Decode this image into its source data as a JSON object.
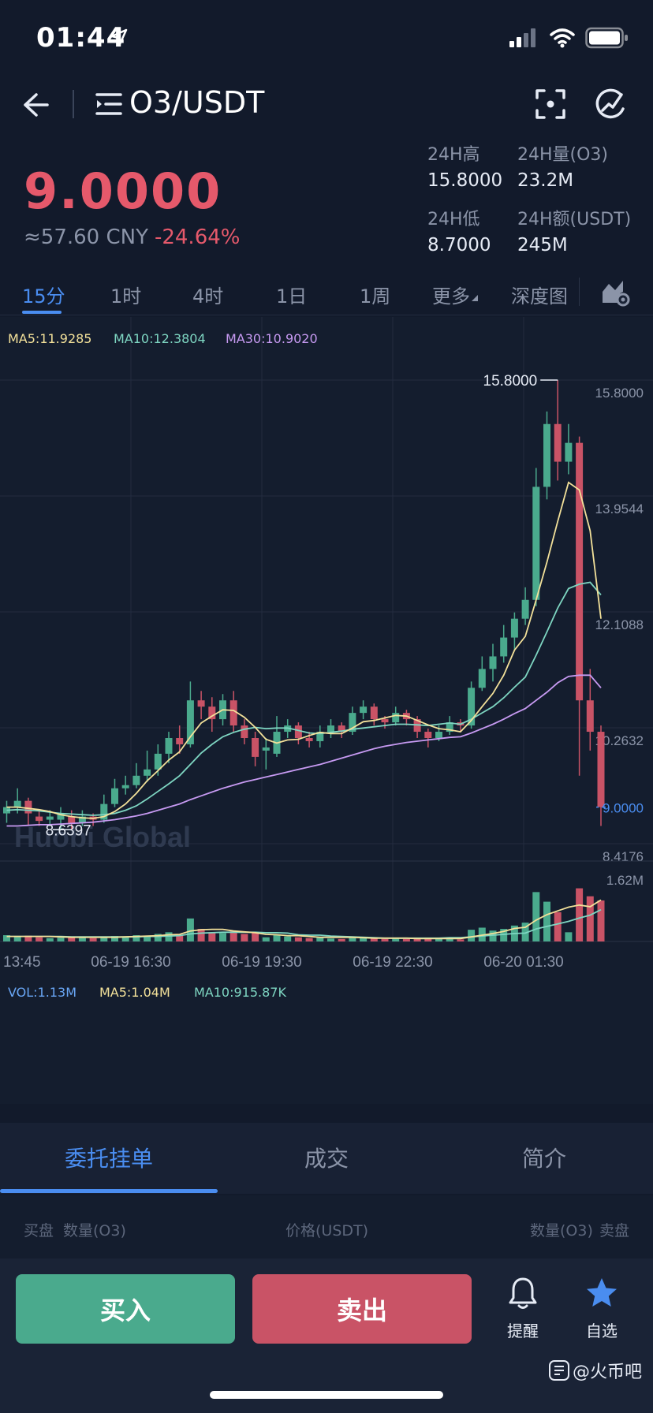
{
  "status": {
    "time": "01:44"
  },
  "nav": {
    "title": "O3/USDT"
  },
  "price": {
    "last": "9.0000",
    "cny": "≈57.60 CNY",
    "change": "-24.64%"
  },
  "stats": {
    "high_label": "24H高",
    "high": "15.8000",
    "vol_label": "24H量(O3)",
    "vol": "23.2M",
    "low_label": "24H低",
    "low": "8.7000",
    "amount_label": "24H额(USDT)",
    "amount": "245M"
  },
  "tabs": [
    "15分",
    "1时",
    "4时",
    "1日",
    "1周",
    "更多",
    "深度图"
  ],
  "ma": {
    "ma5": "MA5:11.9285",
    "ma10": "MA10:12.3804",
    "ma30": "MA30:10.9020"
  },
  "vol_legend": {
    "vol": "VOL:1.13M",
    "ma5": "MA5:1.04M",
    "ma10": "MA10:915.87K"
  },
  "chart_data": {
    "type": "candlestick",
    "price_axis": [
      "15.8000",
      "13.9544",
      "12.1088",
      "10.2632",
      "8.4176"
    ],
    "ylim": [
      8.4176,
      15.8
    ],
    "volume_axis_max": "1.62M",
    "x_ticks": [
      "13:45",
      "06-19 16:30",
      "06-19 19:30",
      "06-19 22:30",
      "06-20 01:30"
    ],
    "high_marker": "15.8000",
    "low_marker": "8.6397",
    "last_price_marker": "9.0000",
    "watermark": "Huobi Global",
    "candles": [
      {
        "o": 8.9,
        "c": 9.0,
        "h": 9.1,
        "l": 8.75,
        "v": 0.15
      },
      {
        "o": 9.0,
        "c": 9.1,
        "h": 9.3,
        "l": 8.9,
        "v": 0.12
      },
      {
        "o": 9.1,
        "c": 8.9,
        "h": 9.15,
        "l": 8.7,
        "v": 0.14
      },
      {
        "o": 8.85,
        "c": 8.78,
        "h": 8.95,
        "l": 8.7,
        "v": 0.1
      },
      {
        "o": 8.8,
        "c": 8.85,
        "h": 8.95,
        "l": 8.7,
        "v": 0.08
      },
      {
        "o": 8.8,
        "c": 8.9,
        "h": 9.0,
        "l": 8.65,
        "v": 0.09
      },
      {
        "o": 8.85,
        "c": 8.75,
        "h": 8.95,
        "l": 8.64,
        "v": 0.12
      },
      {
        "o": 8.75,
        "c": 8.85,
        "h": 8.95,
        "l": 8.7,
        "v": 0.1
      },
      {
        "o": 8.85,
        "c": 8.8,
        "h": 8.9,
        "l": 8.7,
        "v": 0.08
      },
      {
        "o": 8.8,
        "c": 9.05,
        "h": 9.2,
        "l": 8.75,
        "v": 0.11
      },
      {
        "o": 9.05,
        "c": 9.3,
        "h": 9.45,
        "l": 9.0,
        "v": 0.13
      },
      {
        "o": 9.3,
        "c": 9.35,
        "h": 9.5,
        "l": 9.2,
        "v": 0.12
      },
      {
        "o": 9.35,
        "c": 9.5,
        "h": 9.7,
        "l": 9.3,
        "v": 0.15
      },
      {
        "o": 9.5,
        "c": 9.6,
        "h": 9.9,
        "l": 9.4,
        "v": 0.14
      },
      {
        "o": 9.6,
        "c": 9.85,
        "h": 10.0,
        "l": 9.5,
        "v": 0.18
      },
      {
        "o": 9.85,
        "c": 10.1,
        "h": 10.2,
        "l": 9.7,
        "v": 0.22
      },
      {
        "o": 10.1,
        "c": 10.0,
        "h": 10.3,
        "l": 9.85,
        "v": 0.16
      },
      {
        "o": 10.0,
        "c": 10.7,
        "h": 11.0,
        "l": 9.95,
        "v": 0.55
      },
      {
        "o": 10.7,
        "c": 10.6,
        "h": 10.85,
        "l": 10.4,
        "v": 0.3
      },
      {
        "o": 10.6,
        "c": 10.4,
        "h": 10.75,
        "l": 10.2,
        "v": 0.22
      },
      {
        "o": 10.4,
        "c": 10.7,
        "h": 10.8,
        "l": 10.3,
        "v": 0.2
      },
      {
        "o": 10.7,
        "c": 10.3,
        "h": 10.85,
        "l": 10.2,
        "v": 0.25
      },
      {
        "o": 10.3,
        "c": 10.1,
        "h": 10.4,
        "l": 10.0,
        "v": 0.18
      },
      {
        "o": 10.1,
        "c": 9.8,
        "h": 10.2,
        "l": 9.65,
        "v": 0.2
      },
      {
        "o": 9.9,
        "c": 9.95,
        "h": 10.1,
        "l": 9.6,
        "v": 0.1
      },
      {
        "o": 9.85,
        "c": 10.2,
        "h": 10.45,
        "l": 9.8,
        "v": 0.16
      },
      {
        "o": 10.2,
        "c": 10.3,
        "h": 10.4,
        "l": 10.1,
        "v": 0.12
      },
      {
        "o": 10.3,
        "c": 10.1,
        "h": 10.35,
        "l": 10.0,
        "v": 0.1
      },
      {
        "o": 10.1,
        "c": 10.05,
        "h": 10.2,
        "l": 9.95,
        "v": 0.08
      },
      {
        "o": 10.05,
        "c": 10.2,
        "h": 10.3,
        "l": 9.95,
        "v": 0.09
      },
      {
        "o": 10.2,
        "c": 10.3,
        "h": 10.4,
        "l": 10.1,
        "v": 0.07
      },
      {
        "o": 10.3,
        "c": 10.2,
        "h": 10.35,
        "l": 10.1,
        "v": 0.06
      },
      {
        "o": 10.2,
        "c": 10.5,
        "h": 10.6,
        "l": 10.15,
        "v": 0.12
      },
      {
        "o": 10.5,
        "c": 10.6,
        "h": 10.7,
        "l": 10.4,
        "v": 0.1
      },
      {
        "o": 10.6,
        "c": 10.4,
        "h": 10.65,
        "l": 10.3,
        "v": 0.08
      },
      {
        "o": 10.4,
        "c": 10.35,
        "h": 10.45,
        "l": 10.25,
        "v": 0.06
      },
      {
        "o": 10.35,
        "c": 10.5,
        "h": 10.6,
        "l": 10.3,
        "v": 0.07
      },
      {
        "o": 10.5,
        "c": 10.4,
        "h": 10.55,
        "l": 10.3,
        "v": 0.06
      },
      {
        "o": 10.4,
        "c": 10.2,
        "h": 10.45,
        "l": 10.1,
        "v": 0.07
      },
      {
        "o": 10.2,
        "c": 10.1,
        "h": 10.25,
        "l": 9.95,
        "v": 0.08
      },
      {
        "o": 10.1,
        "c": 10.2,
        "h": 10.3,
        "l": 10.05,
        "v": 0.06
      },
      {
        "o": 10.2,
        "c": 10.35,
        "h": 10.45,
        "l": 10.15,
        "v": 0.07
      },
      {
        "o": 10.35,
        "c": 10.3,
        "h": 10.4,
        "l": 10.2,
        "v": 0.05
      },
      {
        "o": 10.3,
        "c": 10.9,
        "h": 11.0,
        "l": 10.25,
        "v": 0.28
      },
      {
        "o": 10.9,
        "c": 11.2,
        "h": 11.4,
        "l": 10.85,
        "v": 0.33
      },
      {
        "o": 11.2,
        "c": 11.4,
        "h": 11.6,
        "l": 11.0,
        "v": 0.26
      },
      {
        "o": 11.4,
        "c": 11.7,
        "h": 11.9,
        "l": 11.3,
        "v": 0.3
      },
      {
        "o": 11.7,
        "c": 12.0,
        "h": 12.1,
        "l": 11.5,
        "v": 0.38
      },
      {
        "o": 12.0,
        "c": 12.3,
        "h": 12.5,
        "l": 11.9,
        "v": 0.45
      },
      {
        "o": 12.3,
        "c": 14.1,
        "h": 14.4,
        "l": 12.2,
        "v": 1.18
      },
      {
        "o": 14.1,
        "c": 15.1,
        "h": 15.3,
        "l": 13.9,
        "v": 0.95
      },
      {
        "o": 15.1,
        "c": 14.5,
        "h": 15.8,
        "l": 14.2,
        "v": 0.7
      },
      {
        "o": 14.5,
        "c": 14.8,
        "h": 15.1,
        "l": 14.3,
        "v": 0.22
      },
      {
        "o": 14.8,
        "c": 10.7,
        "h": 14.9,
        "l": 9.5,
        "v": 1.27
      },
      {
        "o": 10.7,
        "c": 10.2,
        "h": 11.2,
        "l": 9.9,
        "v": 1.08
      },
      {
        "o": 10.2,
        "c": 9.0,
        "h": 10.3,
        "l": 8.7,
        "v": 0.98
      }
    ],
    "ma5": [
      9.0,
      9.0,
      8.98,
      8.96,
      8.93,
      8.88,
      8.85,
      8.83,
      8.82,
      8.85,
      8.93,
      9.05,
      9.22,
      9.42,
      9.58,
      9.75,
      9.88,
      10.12,
      10.34,
      10.45,
      10.55,
      10.54,
      10.43,
      10.27,
      10.08,
      10.02,
      10.07,
      10.08,
      10.14,
      10.19,
      10.17,
      10.17,
      10.26,
      10.36,
      10.38,
      10.42,
      10.46,
      10.45,
      10.38,
      10.31,
      10.25,
      10.23,
      10.2,
      10.38,
      10.6,
      10.81,
      11.1,
      11.5,
      11.72,
      12.3,
      12.9,
      13.55,
      14.17,
      14.05,
      13.4,
      12.0
    ],
    "ma10": [
      8.95,
      8.96,
      8.95,
      8.94,
      8.92,
      8.9,
      8.89,
      8.88,
      8.87,
      8.88,
      8.9,
      8.95,
      9.02,
      9.13,
      9.25,
      9.37,
      9.5,
      9.68,
      9.86,
      10.0,
      10.12,
      10.19,
      10.24,
      10.27,
      10.25,
      10.26,
      10.26,
      10.22,
      10.18,
      10.17,
      10.19,
      10.21,
      10.24,
      10.26,
      10.28,
      10.3,
      10.32,
      10.32,
      10.31,
      10.3,
      10.32,
      10.34,
      10.32,
      10.4,
      10.5,
      10.6,
      10.74,
      10.91,
      11.07,
      11.42,
      11.79,
      12.17,
      12.48,
      12.55,
      12.58,
      12.38
    ],
    "ma30": [
      8.7,
      8.7,
      8.71,
      8.72,
      8.72,
      8.73,
      8.74,
      8.75,
      8.76,
      8.78,
      8.8,
      8.83,
      8.86,
      8.9,
      8.95,
      9.0,
      9.05,
      9.12,
      9.18,
      9.24,
      9.3,
      9.35,
      9.4,
      9.44,
      9.48,
      9.52,
      9.56,
      9.6,
      9.64,
      9.68,
      9.73,
      9.78,
      9.83,
      9.88,
      9.93,
      9.97,
      10.0,
      10.03,
      10.05,
      10.07,
      10.09,
      10.11,
      10.12,
      10.18,
      10.25,
      10.32,
      10.4,
      10.49,
      10.57,
      10.7,
      10.83,
      10.98,
      11.08,
      11.1,
      11.1,
      10.9
    ],
    "vol_ma5": [
      0.12,
      0.12,
      0.12,
      0.12,
      0.12,
      0.11,
      0.1,
      0.1,
      0.1,
      0.1,
      0.1,
      0.11,
      0.12,
      0.13,
      0.14,
      0.16,
      0.17,
      0.25,
      0.28,
      0.29,
      0.29,
      0.25,
      0.23,
      0.21,
      0.17,
      0.16,
      0.14,
      0.14,
      0.12,
      0.1,
      0.1,
      0.1,
      0.1,
      0.09,
      0.08,
      0.08,
      0.08,
      0.08,
      0.07,
      0.07,
      0.07,
      0.07,
      0.07,
      0.11,
      0.15,
      0.19,
      0.24,
      0.31,
      0.34,
      0.51,
      0.64,
      0.73,
      0.82,
      0.87,
      0.83,
      0.99
    ],
    "vol_ma10": [
      0.12,
      0.12,
      0.12,
      0.12,
      0.12,
      0.12,
      0.11,
      0.11,
      0.11,
      0.11,
      0.11,
      0.11,
      0.11,
      0.12,
      0.12,
      0.13,
      0.14,
      0.18,
      0.2,
      0.21,
      0.22,
      0.22,
      0.22,
      0.22,
      0.21,
      0.21,
      0.2,
      0.16,
      0.15,
      0.15,
      0.13,
      0.12,
      0.11,
      0.1,
      0.09,
      0.08,
      0.08,
      0.08,
      0.08,
      0.08,
      0.08,
      0.09,
      0.09,
      0.11,
      0.13,
      0.15,
      0.17,
      0.19,
      0.2,
      0.3,
      0.36,
      0.42,
      0.48,
      0.56,
      0.63,
      0.76
    ]
  },
  "bottom_tabs": [
    "委托挂单",
    "成交",
    "简介"
  ],
  "book_header": {
    "buy": "买盘",
    "buy_qty": "数量(O3)",
    "price": "价格(USDT)",
    "sell_qty": "数量(O3)",
    "sell": "卖盘"
  },
  "actions": {
    "buy": "买入",
    "sell": "卖出",
    "alert": "提醒",
    "favorite": "自选"
  },
  "watermark_text": "@火币吧",
  "colors": {
    "up": "#4aaa8d",
    "down": "#c95366",
    "accent": "#4a8df0",
    "ma5": "#f3e19a",
    "ma10": "#7ed6c2",
    "ma30": "#c79af2"
  }
}
